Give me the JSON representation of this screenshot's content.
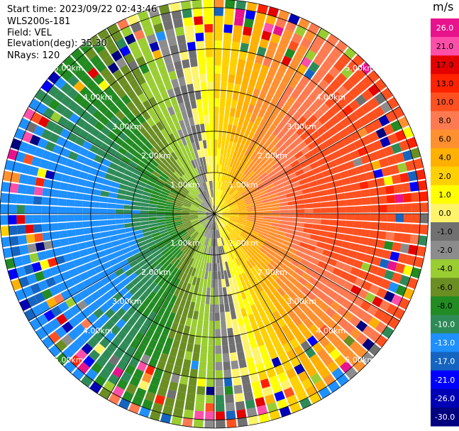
{
  "header": {
    "start_time": "Start time: 2023/09/22 02:43:46",
    "instrument": "WLS200s-181",
    "field": "Field: VEL",
    "elevation": "Elevation(deg): 35.30",
    "nrays": "NRays: 120"
  },
  "chart_data": {
    "type": "heatmap",
    "projection": "polar PPI",
    "field": "VEL",
    "units": "m/s",
    "n_rays": 120,
    "range_ring_labels": [
      "1.00km",
      "2.00km",
      "3.00km",
      "4.00km",
      "5.00km"
    ],
    "range_rings_km": [
      1,
      2,
      3,
      4,
      5
    ],
    "max_range_km": 5.2,
    "colorbar": {
      "title": "m/s",
      "tick_labels": [
        "26.0",
        "21.0",
        "17.0",
        "13.0",
        "10.0",
        "8.0",
        "6.0",
        "4.0",
        "2.0",
        "1.0",
        "0.0",
        "-1.0",
        "-2.0",
        "-4.0",
        "-6.0",
        "-8.0",
        "-10.0",
        "-13.0",
        "-17.0",
        "-21.0",
        "-26.0",
        "-30.0"
      ],
      "colors": [
        "#e8128c",
        "#ff4fa8",
        "#e50000",
        "#ff2200",
        "#ff5020",
        "#ff7a50",
        "#ff9030",
        "#ffb000",
        "#ffd000",
        "#ffff00",
        "#fff36a",
        "#707070",
        "#8c8c8c",
        "#9acd32",
        "#6b8e23",
        "#228b22",
        "#2e8b57",
        "#1e90ff",
        "#1565c0",
        "#0000ff",
        "#0000b4",
        "#000080"
      ]
    },
    "velocity_pattern": {
      "receding_azimuth_deg": 80,
      "max_abs_velocity_ms": 13,
      "gate_profile": [
        {
          "range_km": 0.5,
          "speed_ms": 4
        },
        {
          "range_km": 1.0,
          "speed_ms": 7
        },
        {
          "range_km": 2.0,
          "speed_ms": 10
        },
        {
          "range_km": 3.0,
          "speed_ms": 12
        },
        {
          "range_km": 5.0,
          "speed_ms": 13
        }
      ]
    }
  }
}
